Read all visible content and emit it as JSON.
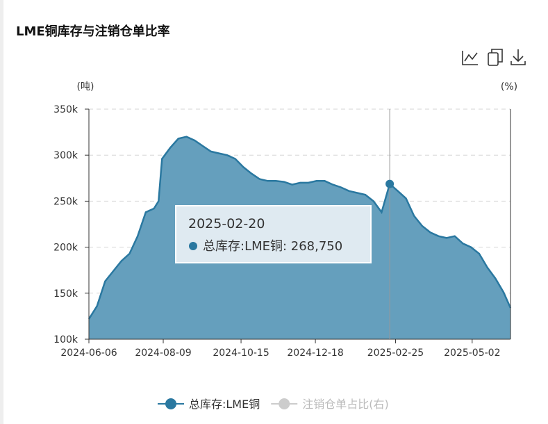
{
  "chart_data": {
    "type": "area",
    "title": "LME铜库存与注销仓单比率",
    "y_label": "(吨)",
    "y2_label": "(%)",
    "x": [
      "2024-06-06",
      "2024-06-13",
      "2024-06-20",
      "2024-06-27",
      "2024-07-04",
      "2024-07-11",
      "2024-07-18",
      "2024-07-25",
      "2024-08-01",
      "2024-08-05",
      "2024-08-08",
      "2024-08-15",
      "2024-08-22",
      "2024-08-29",
      "2024-09-05",
      "2024-09-12",
      "2024-09-19",
      "2024-09-26",
      "2024-10-03",
      "2024-10-10",
      "2024-10-17",
      "2024-10-24",
      "2024-10-31",
      "2024-11-07",
      "2024-11-14",
      "2024-11-21",
      "2024-11-28",
      "2024-12-05",
      "2024-12-12",
      "2024-12-19",
      "2024-12-26",
      "2025-01-02",
      "2025-01-09",
      "2025-01-16",
      "2025-01-23",
      "2025-01-30",
      "2025-02-06",
      "2025-02-13",
      "2025-02-20",
      "2025-02-27",
      "2025-03-06",
      "2025-03-13",
      "2025-03-20",
      "2025-03-27",
      "2025-04-03",
      "2025-04-10",
      "2025-04-17",
      "2025-04-24",
      "2025-05-01",
      "2025-05-08",
      "2025-05-15",
      "2025-05-22",
      "2025-05-29",
      "2025-06-04"
    ],
    "series": [
      {
        "name": "总库存:LME铜",
        "color": "#2a78a0",
        "fill": "#659fbd",
        "values": [
          122000,
          136000,
          163000,
          174000,
          185000,
          193000,
          212000,
          238000,
          242000,
          250000,
          296000,
          308000,
          318000,
          320000,
          316000,
          310000,
          304000,
          302000,
          300000,
          296000,
          287000,
          280000,
          274000,
          272000,
          272000,
          271000,
          268000,
          270000,
          270000,
          272000,
          272000,
          268000,
          265000,
          261000,
          259000,
          257000,
          250000,
          238000,
          268750,
          261000,
          253000,
          234000,
          223000,
          216000,
          212000,
          210000,
          212000,
          204000,
          200000,
          193000,
          178000,
          166000,
          151000,
          134000
        ]
      },
      {
        "name": "注销仓单占比(右)",
        "color": "#cccccc",
        "visible": false
      }
    ],
    "xlim": [
      "2024-06-06",
      "2025-06-04"
    ],
    "xticks": [
      "2024-06-06",
      "2024-08-09",
      "2024-10-15",
      "2024-12-18",
      "2025-02-25",
      "2025-05-02"
    ],
    "ylim": [
      100000,
      350000
    ],
    "yticks": [
      {
        "value": 100000,
        "label": "100k"
      },
      {
        "value": 150000,
        "label": "150k"
      },
      {
        "value": 200000,
        "label": "200k"
      },
      {
        "value": 250000,
        "label": "250k"
      },
      {
        "value": 300000,
        "label": "300k"
      },
      {
        "value": 350000,
        "label": "350k"
      }
    ],
    "grid": true,
    "tooltip": {
      "x": "2025-02-20",
      "value": 268750,
      "value_label": "总库存:LME铜: 268,750"
    }
  }
}
